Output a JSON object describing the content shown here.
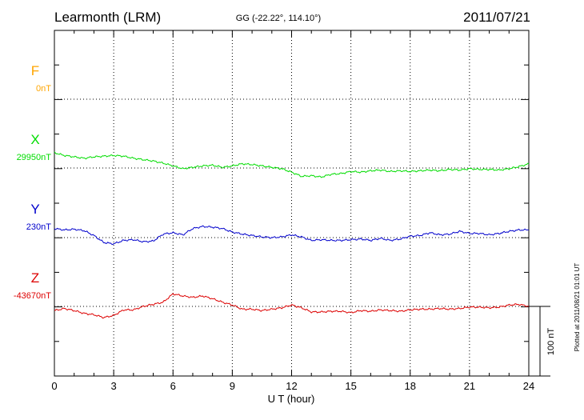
{
  "header": {
    "station": "Learmonth (LRM)",
    "coords": "GG (-22.22°, 114.10°)",
    "date": "2011/07/21"
  },
  "footer": {
    "plotted_note": "Plotted at 2011/08/21 01:01 UT",
    "scale_label": "100 nT"
  },
  "colors": {
    "F": "#ffa500",
    "X": "#00dd00",
    "Y": "#0000cc",
    "Z": "#dd0000"
  },
  "chart_data": {
    "type": "line",
    "xlabel": "U T (hour)",
    "xlim": [
      0,
      24
    ],
    "x_ticks": [
      "0",
      "3",
      "6",
      "9",
      "12",
      "15",
      "18",
      "21",
      "24"
    ],
    "scale_bar_nT": 100,
    "grid": true,
    "series": [
      {
        "name": "F",
        "baseline": "0nT",
        "color": "#ffa500",
        "x": [],
        "values": []
      },
      {
        "name": "X",
        "baseline": "29950nT",
        "color": "#00dd00",
        "x": [
          0,
          0.5,
          1,
          1.5,
          2,
          2.5,
          3,
          3.5,
          4,
          4.5,
          5,
          5.5,
          6,
          6.5,
          7,
          7.5,
          8,
          8.5,
          9,
          9.5,
          10,
          10.5,
          11,
          11.5,
          12,
          12.5,
          13,
          13.5,
          14,
          14.5,
          15,
          15.5,
          16,
          16.5,
          17,
          17.5,
          18,
          18.5,
          19,
          19.5,
          20,
          20.5,
          21,
          21.5,
          22,
          22.5,
          23,
          23.5,
          24
        ],
        "values": [
          22,
          18,
          16,
          14,
          16,
          17,
          18,
          17,
          14,
          12,
          10,
          7,
          3,
          -1,
          1,
          3,
          4,
          1,
          3,
          6,
          5,
          3,
          1,
          -1,
          -6,
          -12,
          -11,
          -13,
          -9,
          -8,
          -5,
          -6,
          -4,
          -3,
          -5,
          -4,
          -5,
          -4,
          -3,
          -4,
          -2,
          -3,
          -1,
          -2,
          -2,
          -3,
          -1,
          2,
          6
        ]
      },
      {
        "name": "Y",
        "baseline": "230nT",
        "color": "#0000cc",
        "x": [
          0,
          0.5,
          1,
          1.5,
          2,
          2.5,
          3,
          3.5,
          4,
          4.5,
          5,
          5.5,
          6,
          6.5,
          7,
          7.5,
          8,
          8.5,
          9,
          9.5,
          10,
          10.5,
          11,
          11.5,
          12,
          12.5,
          13,
          13.5,
          14,
          14.5,
          15,
          15.5,
          16,
          16.5,
          17,
          17.5,
          18,
          18.5,
          19,
          19.5,
          20,
          20.5,
          21,
          21.5,
          22,
          22.5,
          23,
          23.5,
          24
        ],
        "values": [
          13,
          11,
          12,
          10,
          3,
          -7,
          -9,
          -4,
          -3,
          -6,
          -5,
          5,
          7,
          4,
          13,
          16,
          15,
          13,
          8,
          5,
          3,
          1,
          0,
          1,
          4,
          1,
          -4,
          -3,
          -4,
          -4,
          -3,
          -2,
          -4,
          -1,
          -4,
          -2,
          2,
          3,
          7,
          4,
          5,
          9,
          6,
          6,
          4,
          6,
          9,
          11,
          11
        ]
      },
      {
        "name": "Z",
        "baseline": "-43670nT",
        "color": "#dd0000",
        "x": [
          0,
          0.5,
          1,
          1.5,
          2,
          2.5,
          3,
          3.5,
          4,
          4.5,
          5,
          5.5,
          6,
          6.5,
          7,
          7.5,
          8,
          8.5,
          9,
          9.5,
          10,
          10.5,
          11,
          11.5,
          12,
          12.5,
          13,
          13.5,
          14,
          14.5,
          15,
          15.5,
          16,
          16.5,
          17,
          17.5,
          18,
          18.5,
          19,
          19.5,
          20,
          20.5,
          21,
          21.5,
          22,
          22.5,
          23,
          23.5,
          24
        ],
        "values": [
          -6,
          -3,
          -6,
          -10,
          -12,
          -16,
          -13,
          -5,
          -5,
          0,
          3,
          6,
          18,
          15,
          13,
          15,
          11,
          6,
          2,
          -4,
          -4,
          -6,
          -4,
          -2,
          2,
          -2,
          -8,
          -8,
          -7,
          -7,
          -9,
          -6,
          -7,
          -5,
          -6,
          -7,
          -5,
          -4,
          -4,
          -3,
          -4,
          -3,
          -1,
          -1,
          -2,
          -1,
          2,
          3,
          0
        ]
      }
    ]
  }
}
